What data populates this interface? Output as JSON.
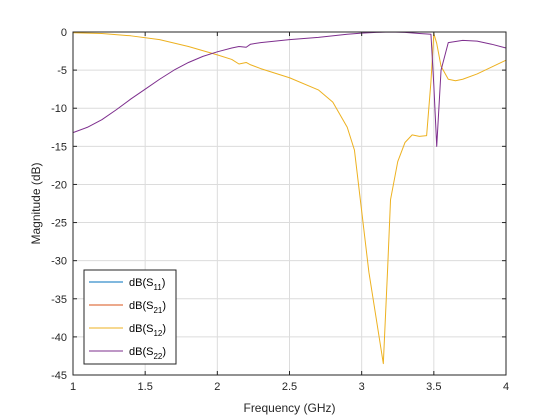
{
  "chart_data": {
    "type": "line",
    "title": "",
    "xlabel": "Frequency (GHz)",
    "ylabel": "Magnitude (dB)",
    "xlim": [
      1,
      4
    ],
    "ylim": [
      -45,
      0
    ],
    "xticks": [
      1,
      1.5,
      2,
      2.5,
      3,
      3.5,
      4
    ],
    "xtick_labels": [
      "1",
      "1.5",
      "2",
      "2.5",
      "3",
      "3.5",
      "4"
    ],
    "yticks": [
      0,
      -5,
      -10,
      -15,
      -20,
      -25,
      -30,
      -35,
      -40,
      -45
    ],
    "ytick_labels": [
      "0",
      "-5",
      "-10",
      "-15",
      "-20",
      "-25",
      "-30",
      "-35",
      "-40",
      "-45"
    ],
    "grid": true,
    "legend_position": "bottom-left",
    "series": [
      {
        "name": "dB(S11)",
        "base": "dB(S",
        "sub": "11",
        "suffix": ")",
        "color": "#0072BD",
        "x": [],
        "y": []
      },
      {
        "name": "dB(S21)",
        "base": "dB(S",
        "sub": "21",
        "suffix": ")",
        "color": "#D95319",
        "x": [],
        "y": []
      },
      {
        "name": "dB(S12)",
        "base": "dB(S",
        "sub": "12",
        "suffix": ")",
        "color": "#EDB120",
        "x": [
          1.0,
          1.2,
          1.4,
          1.6,
          1.8,
          2.0,
          2.1,
          2.15,
          2.2,
          2.23,
          2.3,
          2.5,
          2.7,
          2.8,
          2.9,
          2.95,
          3.0,
          3.05,
          3.1,
          3.15,
          3.18,
          3.2,
          3.25,
          3.3,
          3.35,
          3.4,
          3.45,
          3.48,
          3.5,
          3.52,
          3.55,
          3.6,
          3.65,
          3.7,
          3.8,
          3.9,
          4.0
        ],
        "y": [
          -0.1,
          -0.2,
          -0.5,
          -1.0,
          -1.9,
          -3.0,
          -3.6,
          -4.2,
          -4.0,
          -4.3,
          -4.8,
          -6.0,
          -7.6,
          -9.2,
          -12.5,
          -15.5,
          -23.5,
          -31.5,
          -37.5,
          -43.5,
          -31.0,
          -22.0,
          -17.0,
          -14.5,
          -13.5,
          -13.7,
          -13.6,
          -6.5,
          -0.2,
          -1.5,
          -4.5,
          -6.2,
          -6.4,
          -6.2,
          -5.5,
          -4.6,
          -3.7
        ]
      },
      {
        "name": "dB(S22)",
        "base": "dB(S",
        "sub": "22",
        "suffix": ")",
        "color": "#7E2F8E",
        "x": [
          1.0,
          1.1,
          1.2,
          1.3,
          1.4,
          1.5,
          1.6,
          1.7,
          1.8,
          1.9,
          2.0,
          2.1,
          2.15,
          2.2,
          2.23,
          2.3,
          2.5,
          2.7,
          2.9,
          3.0,
          3.1,
          3.2,
          3.3,
          3.4,
          3.48,
          3.5,
          3.52,
          3.55,
          3.6,
          3.7,
          3.8,
          3.9,
          4.0
        ],
        "y": [
          -13.2,
          -12.5,
          -11.5,
          -10.2,
          -8.8,
          -7.5,
          -6.2,
          -5.0,
          -4.0,
          -3.2,
          -2.6,
          -2.1,
          -1.9,
          -2.0,
          -1.6,
          -1.4,
          -1.0,
          -0.7,
          -0.3,
          -0.15,
          -0.05,
          0.0,
          -0.05,
          -0.2,
          -0.3,
          -7.0,
          -15.0,
          -5.0,
          -1.4,
          -1.1,
          -1.2,
          -1.6,
          -2.1
        ]
      }
    ]
  }
}
